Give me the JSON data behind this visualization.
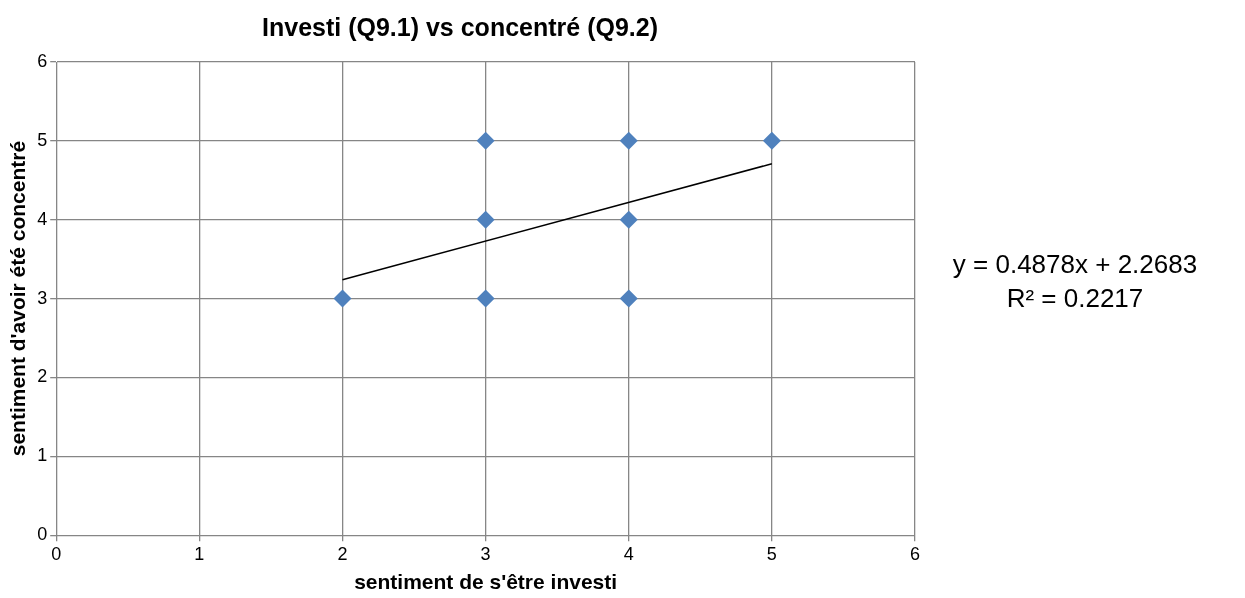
{
  "chart_data": {
    "type": "scatter",
    "title": "Investi (Q9.1) vs concentré (Q9.2)",
    "xlabel": "sentiment de s'être investi",
    "ylabel": "sentiment d'avoir été concentré",
    "xlim": [
      0,
      6
    ],
    "xticks": [
      0,
      1,
      2,
      3,
      4,
      5,
      6
    ],
    "ylim": [
      0,
      6
    ],
    "yticks": [
      0,
      1,
      2,
      3,
      4,
      5,
      6
    ],
    "grid": true,
    "legend": false,
    "marker": "diamond",
    "series": [
      {
        "color": "#4f81bd",
        "x": [
          2,
          3,
          3,
          3,
          4,
          4,
          4,
          5
        ],
        "values": [
          3,
          3,
          4,
          5,
          3,
          4,
          5,
          5
        ]
      },
      {
        "type": "line",
        "color": "#000000",
        "marker": "none",
        "x": [
          2,
          5
        ],
        "values": [
          3.24,
          4.71
        ]
      }
    ],
    "annotations": [
      "y = 0.4878x + 2.2683",
      "R² = 0.2217"
    ]
  }
}
